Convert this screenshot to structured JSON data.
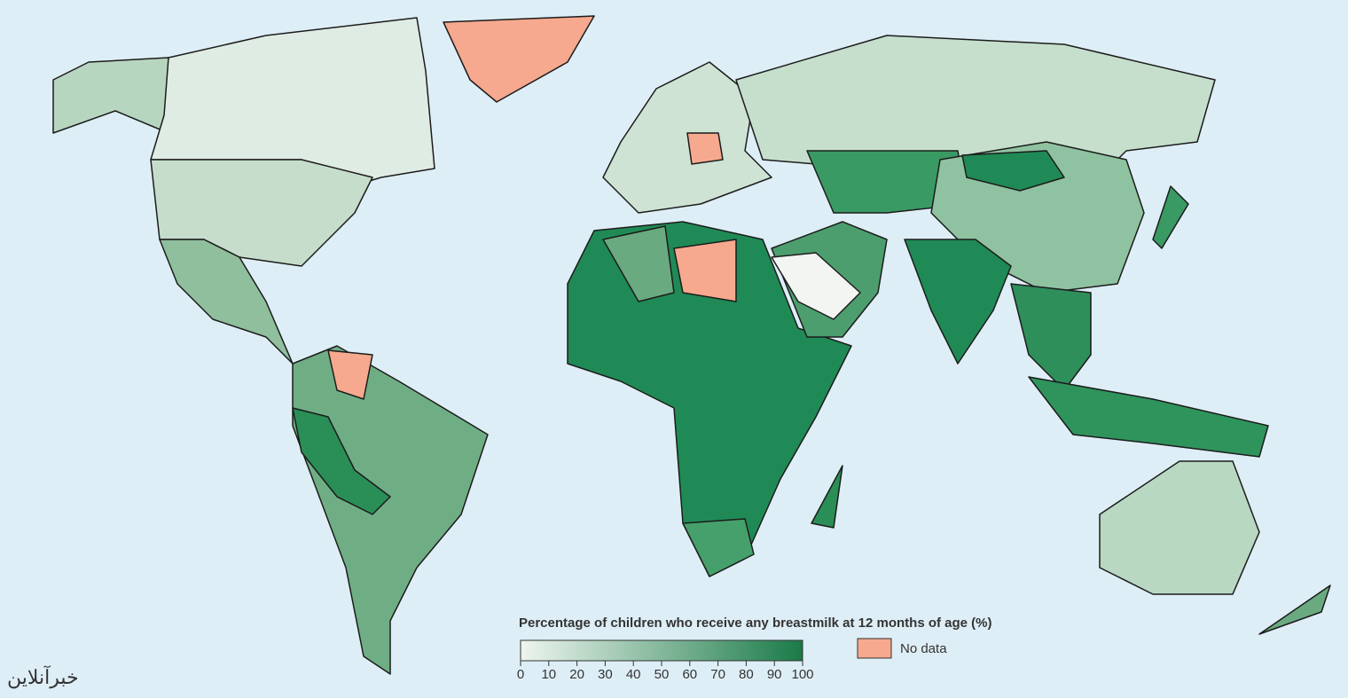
{
  "legend": {
    "title": "Percentage of children who receive any breastmilk at 12 months of age (%)",
    "ticks": [
      0,
      10,
      20,
      30,
      40,
      50,
      60,
      70,
      80,
      90,
      100
    ],
    "colors": [
      "#eef5ef",
      "#1a7a48"
    ],
    "no_data_label": "No data",
    "no_data_color": "#f6a98e"
  },
  "watermark": "خبرآنلاین"
}
